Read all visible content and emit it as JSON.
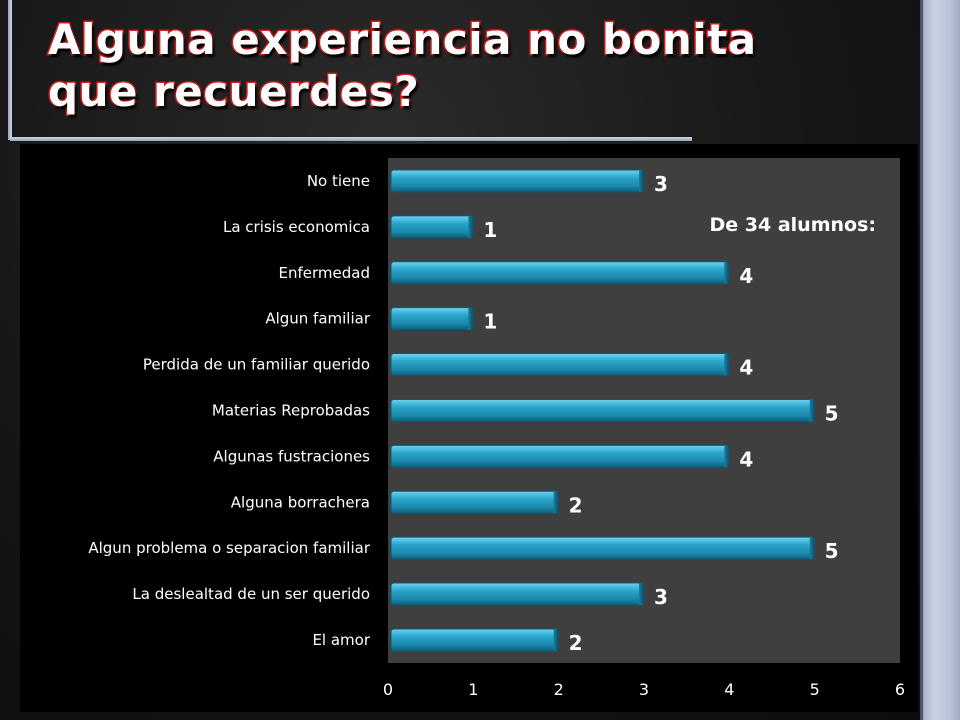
{
  "slide": {
    "title_line1": "Alguna experiencia no bonita",
    "title_line2": "que recuerdes?"
  },
  "chart_data": {
    "type": "bar",
    "orientation": "horizontal",
    "categories": [
      "No tiene",
      "La crisis economica",
      "Enfermedad",
      "Algun familiar",
      "Perdida de un familiar querido",
      "Materias Reprobadas",
      "Algunas fustraciones",
      "Alguna borrachera",
      "Algun problema o separacion familiar",
      "La deslealtad de un ser querido",
      "El amor"
    ],
    "values": [
      3,
      1,
      4,
      1,
      4,
      5,
      4,
      2,
      5,
      3,
      2
    ],
    "xlim": [
      0,
      6
    ],
    "xticks": [
      0,
      1,
      2,
      3,
      4,
      5,
      6
    ],
    "annotation": "De 34 alumnos:",
    "data_labels": true,
    "grid": false,
    "colors": {
      "bar": "#2a9fc4",
      "plot_background": "#3f3f3f",
      "outer_background": "#000000",
      "text": "#ffffff"
    }
  }
}
